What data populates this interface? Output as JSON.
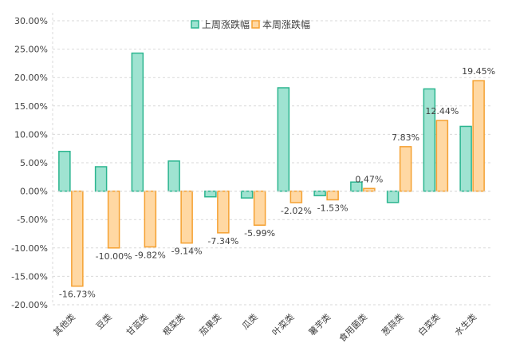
{
  "chart_data": {
    "type": "bar",
    "title": "",
    "xlabel": "",
    "ylabel": "",
    "ylim": [
      -20,
      30
    ],
    "yticks": [
      30,
      25,
      20,
      15,
      10,
      5,
      0,
      -5,
      -10,
      -15,
      -20
    ],
    "ytick_labels": [
      "30.00%",
      "25.00%",
      "20.00%",
      "15.00%",
      "10.00%",
      "5.00%",
      "0.00%",
      "-5.00%",
      "-10.00%",
      "-15.00%",
      "-20.00%"
    ],
    "grid": true,
    "legend_position": "top",
    "categories": [
      "其他类",
      "豆类",
      "甘蓝类",
      "根菜类",
      "茄果类",
      "瓜类",
      "叶菜类",
      "薯芋类",
      "食用菌类",
      "葱蒜类",
      "白菜类",
      "水生类"
    ],
    "series": [
      {
        "name": "上周涨跌幅",
        "fill": "#9fe3d1",
        "stroke": "#2bb58f",
        "values": [
          7.0,
          4.3,
          24.3,
          5.3,
          -1.0,
          -1.2,
          18.2,
          -0.8,
          1.6,
          -2.0,
          18.0,
          11.4
        ],
        "labels": [
          "",
          "",
          "",
          "",
          "",
          "",
          "",
          "",
          "",
          "",
          "",
          ""
        ]
      },
      {
        "name": "本周涨跌幅",
        "fill": "#ffd8a3",
        "stroke": "#f5a132",
        "values": [
          -16.73,
          -10.0,
          -9.82,
          -9.14,
          -7.34,
          -5.99,
          -2.02,
          -1.53,
          0.47,
          7.83,
          12.44,
          19.45
        ],
        "labels": [
          "-16.73%",
          "-10.00%",
          "-9.82%",
          "-9.14%",
          "-7.34%",
          "-5.99%",
          "-2.02%",
          "-1.53%",
          "0.47%",
          "7.83%",
          "12.44%",
          "19.45%"
        ]
      }
    ]
  }
}
